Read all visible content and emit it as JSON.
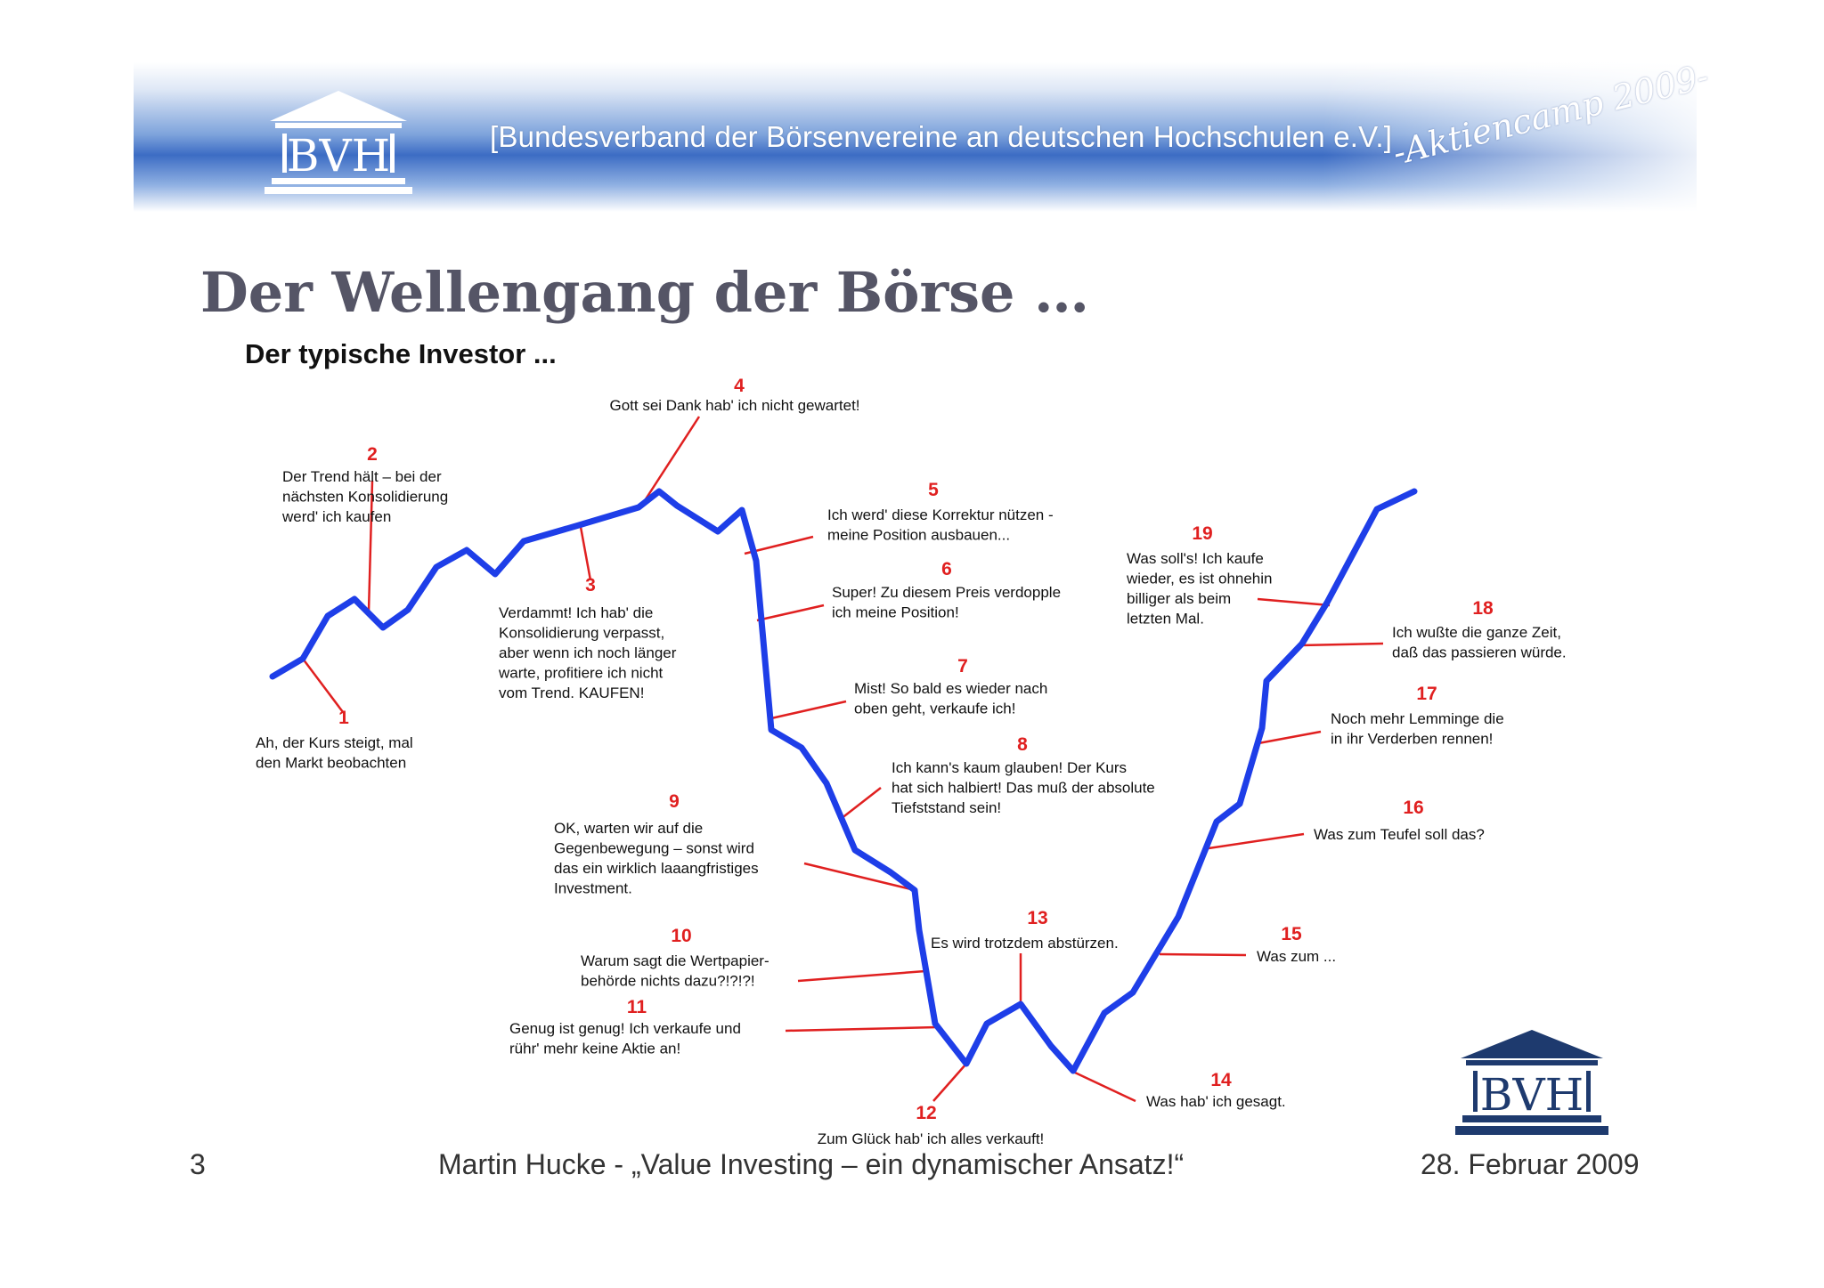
{
  "header": {
    "org_name": "[Bundesverband der Börsenvereine an deutschen Hochschulen e.V.]",
    "camp": "-Aktiencamp 2009-",
    "logo_text": "BVH"
  },
  "slide": {
    "title": "Der Wellengang der Börse …",
    "subtitle": "Der typische Investor ..."
  },
  "annotations": [
    {
      "num": "1",
      "lines": [
        "Ah, der Kurs steigt, mal",
        "den Markt beobachten"
      ]
    },
    {
      "num": "2",
      "lines": [
        "Der Trend hält – bei der",
        "nächsten Konsolidierung",
        "werd' ich kaufen"
      ]
    },
    {
      "num": "3",
      "lines": [
        "Verdammt! Ich hab' die",
        "Konsolidierung verpasst,",
        "aber wenn ich noch länger",
        "warte, profitiere ich nicht",
        "vom Trend. KAUFEN!"
      ]
    },
    {
      "num": "4",
      "lines": [
        "Gott sei Dank hab' ich nicht gewartet!"
      ]
    },
    {
      "num": "5",
      "lines": [
        "Ich werd' diese Korrektur nützen -",
        "meine Position ausbauen..."
      ]
    },
    {
      "num": "6",
      "lines": [
        "Super! Zu diesem Preis verdopple",
        "ich meine Position!"
      ]
    },
    {
      "num": "7",
      "lines": [
        "Mist! So bald es wieder nach",
        "oben geht, verkaufe ich!"
      ]
    },
    {
      "num": "8",
      "lines": [
        "Ich kann's kaum glauben! Der Kurs",
        "hat sich halbiert! Das muß der absolute",
        "Tiefststand sein!"
      ]
    },
    {
      "num": "9",
      "lines": [
        "OK, warten wir auf die",
        "Gegenbewegung – sonst wird",
        "das ein wirklich laaangfristiges",
        "Investment."
      ]
    },
    {
      "num": "10",
      "lines": [
        "Warum sagt die Wertpapier-",
        "behörde nichts dazu?!?!?!"
      ]
    },
    {
      "num": "11",
      "lines": [
        "Genug ist genug! Ich verkaufe und",
        "rühr' mehr keine Aktie an!"
      ]
    },
    {
      "num": "12",
      "lines": [
        "Zum Glück hab' ich alles verkauft!"
      ]
    },
    {
      "num": "13",
      "lines": [
        "Es wird trotzdem abstürzen."
      ]
    },
    {
      "num": "14",
      "lines": [
        "Was hab' ich gesagt."
      ]
    },
    {
      "num": "15",
      "lines": [
        "Was zum ..."
      ]
    },
    {
      "num": "16",
      "lines": [
        "Was zum Teufel soll das?"
      ]
    },
    {
      "num": "17",
      "lines": [
        "Noch mehr Lemminge die",
        "in ihr Verderben rennen!"
      ]
    },
    {
      "num": "18",
      "lines": [
        "Ich wußte die ganze Zeit,",
        "daß das passieren würde."
      ]
    },
    {
      "num": "19",
      "lines": [
        "Was soll's! Ich kaufe",
        "wieder, es ist ohnehin",
        "billiger als beim",
        "letzten Mal."
      ]
    }
  ],
  "footer": {
    "page": "3",
    "presenter": "Martin Hucke - „Value Investing – ein dynamischer Ansatz!“",
    "date": "28. Februar 2009"
  },
  "colors": {
    "curve": "#1e3ee8",
    "callout": "#e02020",
    "title": "#555566",
    "logo": "#1e3a6e"
  }
}
